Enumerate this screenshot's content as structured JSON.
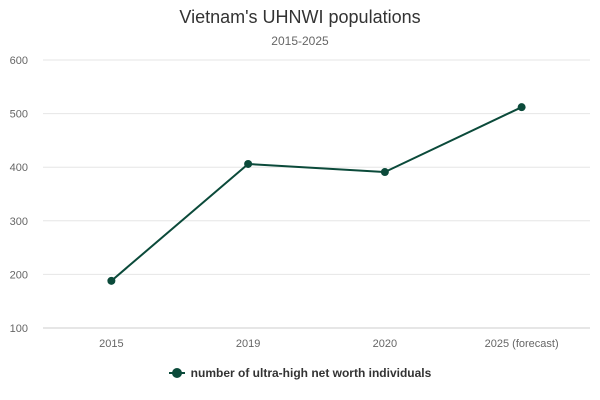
{
  "chart_data": {
    "type": "line",
    "title": "Vietnam's UHNWI populations",
    "subtitle": "2015-2025",
    "xlabel": "",
    "ylabel": "",
    "categories": [
      "2015",
      "2019",
      "2020",
      "2025 (forecast)"
    ],
    "ylim": [
      100,
      600
    ],
    "yticks": [
      100,
      200,
      300,
      400,
      500,
      600
    ],
    "grid": true,
    "legend_position": "bottom",
    "series": [
      {
        "name": "number of ultra-high net worth individuals",
        "values": [
          188,
          406,
          391,
          512
        ],
        "color": "#0b4a3a"
      }
    ]
  },
  "colors": {
    "grid": "#e6e6e6",
    "axis": "#cccccc",
    "tick_text": "#666666",
    "title_text": "#333333"
  }
}
